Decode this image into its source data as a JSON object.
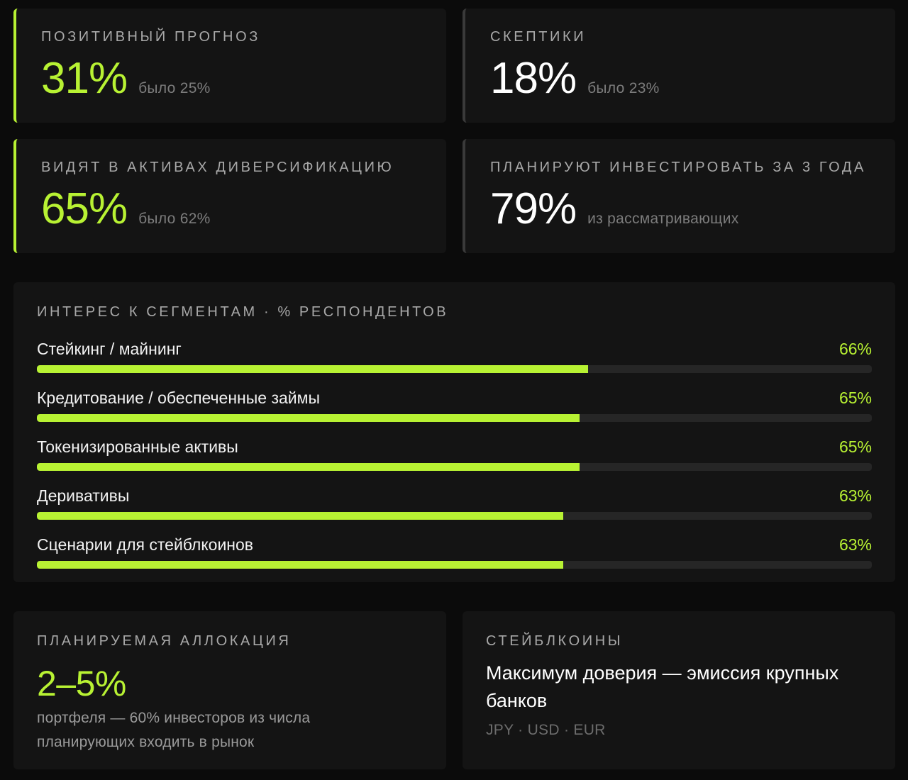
{
  "stats": [
    {
      "label": "Позитивный прогноз",
      "value": "31%",
      "note": "было 25%",
      "accent": true
    },
    {
      "label": "Скептики",
      "value": "18%",
      "note": "было 23%",
      "accent": false
    },
    {
      "label": "Видят в активах диверсификацию",
      "value": "65%",
      "note": "было 62%",
      "accent": true
    },
    {
      "label": "Планируют инвестировать за 3 года",
      "value": "79%",
      "note": "из рассматривающих",
      "accent": false
    }
  ],
  "segments": {
    "title": "Интерес к сегментам · % респондентов",
    "items": [
      {
        "label": "Стейкинг / майнинг",
        "value_text": "66%",
        "value": 66
      },
      {
        "label": "Кредитование / обеспеченные займы",
        "value_text": "65%",
        "value": 65
      },
      {
        "label": "Токенизированные активы",
        "value_text": "65%",
        "value": 65
      },
      {
        "label": "Деривативы",
        "value_text": "63%",
        "value": 63
      },
      {
        "label": "Сценарии для стейблкоинов",
        "value_text": "63%",
        "value": 63
      }
    ]
  },
  "allocation": {
    "label": "Планируемая аллокация",
    "value": "2–5%",
    "description_line1": "портфеля — 60% инвесторов из числа",
    "description_line2": "планирующих входить в рынок"
  },
  "stablecoins": {
    "label": "Стейблкоины",
    "title_line1": "Максимум доверия — эмиссия крупных",
    "title_line2": "банков",
    "tags": "JPY · USD · EUR"
  },
  "colors": {
    "accent": "#b8f233",
    "background": "#0b0b0b",
    "card": "#141414",
    "track": "#262626",
    "muted_border": "#3a3a3a"
  },
  "chart_data": {
    "type": "bar",
    "title": "Интерес к сегментам · % респондентов",
    "orientation": "horizontal",
    "categories": [
      "Стейкинг / майнинг",
      "Кредитование / обеспеченные займы",
      "Токенизированные активы",
      "Деривативы",
      "Сценарии для стейблкоинов"
    ],
    "values": [
      66,
      65,
      65,
      63,
      63
    ],
    "xlabel": "",
    "ylabel": "% респондентов",
    "xlim": [
      0,
      100
    ],
    "grid": false,
    "legend": null
  }
}
